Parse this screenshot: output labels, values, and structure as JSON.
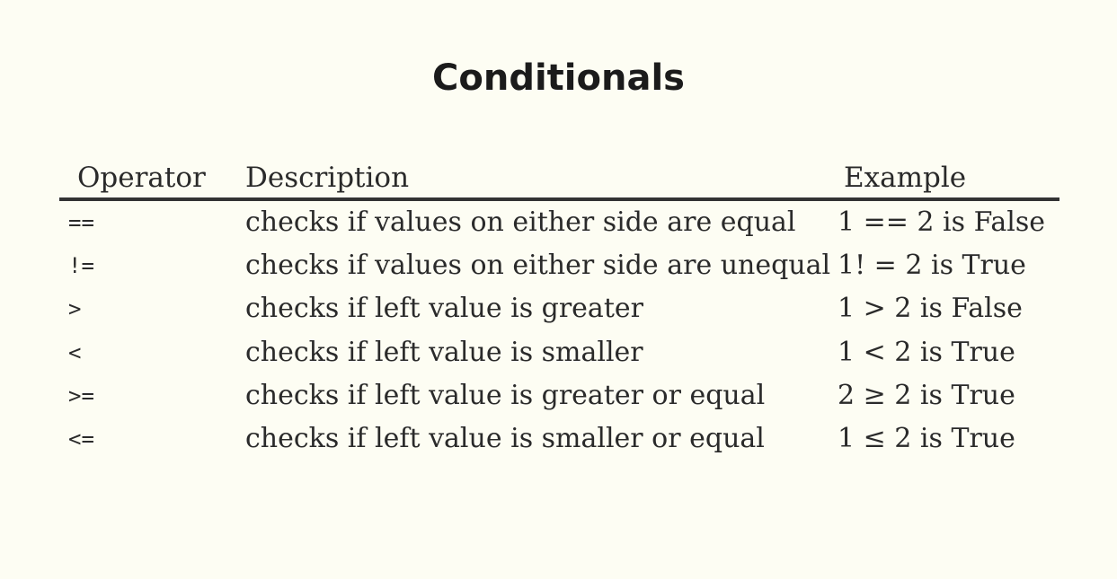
{
  "title": "Conditionals",
  "table": {
    "headers": {
      "operator": "Operator",
      "description": "Description",
      "example": "Example"
    },
    "rows": [
      {
        "operator": "==",
        "description": "checks if values on either side are equal",
        "example": "1 == 2 is False"
      },
      {
        "operator": "!=",
        "description": "checks if values on either side are unequal",
        "example": "1! = 2 is True"
      },
      {
        "operator": ">",
        "description": "checks if left value is greater",
        "example": "1 > 2 is False"
      },
      {
        "operator": "<",
        "description": "checks if left value is smaller",
        "example": "1 < 2 is True"
      },
      {
        "operator": ">=",
        "description": "checks if left value is greater or equal",
        "example": "2 ≥ 2 is True"
      },
      {
        "operator": "<=",
        "description": "checks if left value is smaller or equal",
        "example": "1 ≤ 2 is True"
      }
    ]
  }
}
